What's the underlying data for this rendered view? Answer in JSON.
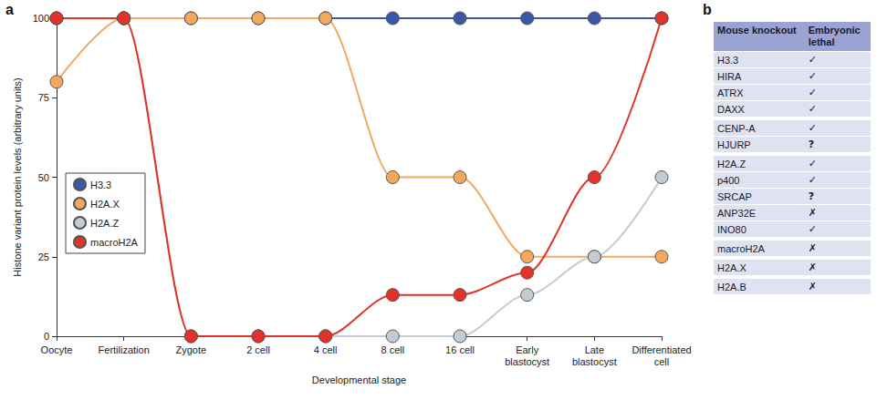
{
  "chart_data": {
    "type": "line",
    "panel_label": "a",
    "x_label": "Developmental stage",
    "y_label": "Histone variant protein levels (arbitrary units)",
    "categories": [
      "Oocyte",
      "Fertilization",
      "Zygote",
      "2 cell",
      "4 cell",
      "8 cell",
      "16 cell",
      "Early blastocyst",
      "Late blastocyst",
      "Differentiated cell"
    ],
    "series": [
      {
        "name": "H3.3",
        "color": "#3b57a6",
        "values": [
          100,
          100,
          100,
          100,
          100,
          100,
          100,
          100,
          100,
          100
        ]
      },
      {
        "name": "H2A.X",
        "color": "#f4a85e",
        "values": [
          80,
          100,
          100,
          100,
          100,
          50,
          50,
          25,
          25,
          25
        ]
      },
      {
        "name": "H2A.Z",
        "color": "#c3ccd3",
        "values": [
          100,
          100,
          0,
          0,
          0,
          0,
          0,
          13,
          25,
          50
        ]
      },
      {
        "name": "macroH2A",
        "color": "#e2322a",
        "values": [
          100,
          100,
          0,
          0,
          0,
          13,
          13,
          20,
          50,
          100
        ]
      }
    ],
    "ylim": [
      0,
      100
    ],
    "yticks": [
      0,
      25,
      50,
      75,
      100
    ],
    "grid": false,
    "legend": "left",
    "marker": "circle",
    "line_style": "solid"
  },
  "table": {
    "panel_label": "b",
    "header": [
      "Mouse knockout",
      "Embryonic lethal"
    ],
    "groups": [
      [
        [
          "H3.3",
          "✓"
        ],
        [
          "HIRA",
          "✓"
        ],
        [
          "ATRX",
          "✓"
        ],
        [
          "DAXX",
          "✓"
        ]
      ],
      [
        [
          "CENP-A",
          "✓"
        ],
        [
          "HJURP",
          "?"
        ]
      ],
      [
        [
          "H2A.Z",
          "✓"
        ],
        [
          "p400",
          "✓"
        ],
        [
          "SRCAP",
          "?"
        ],
        [
          "ANP32E",
          "✗"
        ],
        [
          "INO80",
          "✓"
        ]
      ],
      [
        [
          "macroH2A",
          "✗"
        ]
      ],
      [
        [
          "H2A.X",
          "✗"
        ]
      ],
      [
        [
          "H2A.B",
          "✗"
        ]
      ]
    ]
  }
}
